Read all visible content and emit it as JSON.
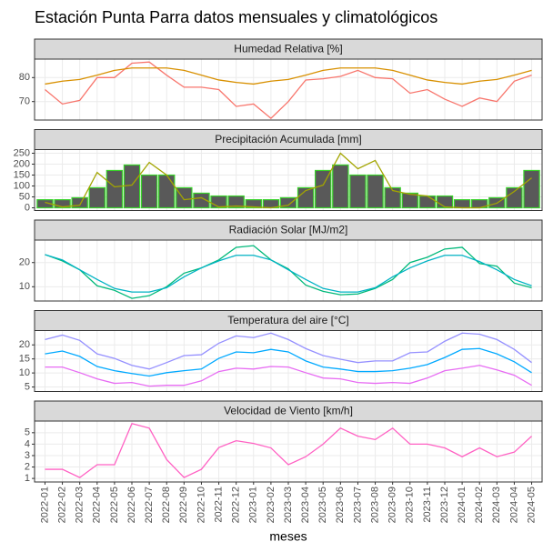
{
  "title": "Estación Punta Parra datos mensuales y climatológicos",
  "chart_data": [
    {
      "type": "line",
      "title": "Humedad Relativa [%]",
      "ylim": [
        62.3,
        87.7
      ],
      "yticks": [
        70,
        80
      ],
      "grid": true,
      "series": [
        {
          "color": "#F8766D",
          "values": [
            75,
            69,
            70.5,
            80,
            80,
            86,
            86.5,
            81,
            76,
            76,
            75,
            68,
            69,
            63,
            70,
            79,
            79.5,
            80.5,
            83,
            80,
            79.5,
            73.5,
            75,
            71,
            68,
            71.5,
            70,
            78.5,
            81
          ]
        },
        {
          "color": "#D89000",
          "values": [
            77.3,
            78.5,
            79.2,
            81,
            83,
            84,
            84,
            84,
            83,
            81,
            79,
            78,
            77.3,
            78.5,
            79.2,
            81,
            83,
            84,
            84,
            84,
            83,
            81,
            79,
            78,
            77.3,
            78.5,
            79.2,
            81,
            83
          ]
        }
      ]
    },
    {
      "type": "combo",
      "title": "Precipitación Acumulada [mm]",
      "ylim": [
        -12.5,
        266.7
      ],
      "yticks": [
        0,
        50,
        100,
        150,
        200,
        250
      ],
      "grid": true,
      "series": [
        {
          "type": "bar",
          "color": "#595959",
          "edgecolor": "#39D12A",
          "values": [
            37,
            37,
            46,
            92,
            171,
            196,
            150,
            150,
            92,
            67,
            54,
            54,
            37,
            37,
            46,
            92,
            171,
            196,
            150,
            150,
            92,
            67,
            54,
            54,
            37,
            37,
            46,
            92,
            171
          ]
        },
        {
          "type": "line",
          "color": "#A3A500",
          "values": [
            25,
            4,
            12,
            162,
            96,
            104,
            208,
            150,
            37,
            46,
            4,
            8,
            4,
            0,
            12,
            79,
            104,
            250,
            179,
            217,
            79,
            62,
            54,
            4,
            0,
            0,
            21,
            75,
            137
          ]
        }
      ]
    },
    {
      "type": "line",
      "title": "Radiación Solar [MJ/m2]",
      "ylim": [
        4.1,
        29.3
      ],
      "yticks": [
        10,
        20
      ],
      "grid": true,
      "series": [
        {
          "color": "#00B97A",
          "values": [
            23.3,
            20.7,
            17,
            10.4,
            8.5,
            5.2,
            6.3,
            10,
            15.6,
            17.8,
            21.1,
            26.3,
            27,
            21.1,
            17.4,
            10.7,
            8.1,
            6.7,
            7,
            9.3,
            13,
            20,
            22.2,
            25.6,
            26.3,
            19.6,
            18.5,
            11.5,
            9.6
          ]
        },
        {
          "color": "#00B3C4",
          "values": [
            23.3,
            21.1,
            17,
            13,
            9.3,
            7.8,
            7.8,
            9.6,
            14.1,
            17.8,
            20.7,
            23,
            23,
            21.1,
            17,
            13,
            9.3,
            7.8,
            7.8,
            9.6,
            14.1,
            17.8,
            20.7,
            23,
            23,
            20.4,
            17,
            13,
            10.4
          ]
        }
      ]
    },
    {
      "type": "line",
      "title": "Temperatura del aire [°C]",
      "ylim": [
        3.4,
        25.1
      ],
      "yticks": [
        5,
        10,
        15,
        20
      ],
      "grid": true,
      "series": [
        {
          "color": "#9590FF",
          "values": [
            21.9,
            23.5,
            21.6,
            16.8,
            15.2,
            12.7,
            11.4,
            13.7,
            16.2,
            16.5,
            20.6,
            23.2,
            22.6,
            24.2,
            21.9,
            18.7,
            16.2,
            14.9,
            13.7,
            14.3,
            14.3,
            17.2,
            17.5,
            21.3,
            24.2,
            23.8,
            21.9,
            18.4,
            13.7
          ]
        },
        {
          "color": "#00A9FF",
          "values": [
            16.8,
            17.8,
            15.9,
            12.3,
            10.8,
            9.8,
            8.9,
            10.1,
            10.8,
            11.4,
            15.2,
            17.5,
            17.2,
            18.4,
            17.5,
            14.3,
            12.1,
            11.4,
            10.5,
            10.5,
            10.8,
            11.7,
            13,
            15.5,
            18.4,
            18.7,
            16.8,
            14,
            10.1
          ]
        },
        {
          "color": "#E76BF3",
          "values": [
            12.1,
            12.1,
            10.1,
            7.9,
            6.3,
            6.6,
            5.3,
            5.6,
            5.6,
            7.2,
            10.5,
            11.7,
            11.4,
            12.3,
            12.1,
            10.1,
            8.2,
            7.9,
            6.6,
            6.3,
            6.6,
            6.3,
            8.2,
            10.8,
            11.7,
            12.7,
            11.1,
            9.2,
            5.6
          ]
        }
      ]
    },
    {
      "type": "line",
      "title": "Velocidad de Viento [km/h]",
      "ylim": [
        0.69,
        6.02
      ],
      "yticks": [
        1,
        2,
        3,
        4,
        5
      ],
      "grid": true,
      "xlabel": "meses",
      "x": [
        "2022-01",
        "2022-02",
        "2022-03",
        "2022-04",
        "2022-05",
        "2022-06",
        "2022-07",
        "2022-08",
        "2022-09",
        "2022-10",
        "2022-11",
        "2022-12",
        "2023-01",
        "2023-02",
        "2023-03",
        "2023-04",
        "2023-05",
        "2023-06",
        "2023-07",
        "2023-08",
        "2023-09",
        "2023-10",
        "2023-11",
        "2023-12",
        "2024-01",
        "2024-02",
        "2024-03",
        "2024-04",
        "2024-05"
      ],
      "series": [
        {
          "color": "#FF61C3",
          "values": [
            1.8,
            1.8,
            1.08,
            2.2,
            2.2,
            5.8,
            5.4,
            2.65,
            1.08,
            1.8,
            3.7,
            4.3,
            4.06,
            3.67,
            2.2,
            2.9,
            4,
            5.4,
            4.7,
            4.4,
            5.4,
            4,
            4,
            3.67,
            2.9,
            3.67,
            2.9,
            3.3,
            4.7
          ]
        }
      ]
    }
  ]
}
